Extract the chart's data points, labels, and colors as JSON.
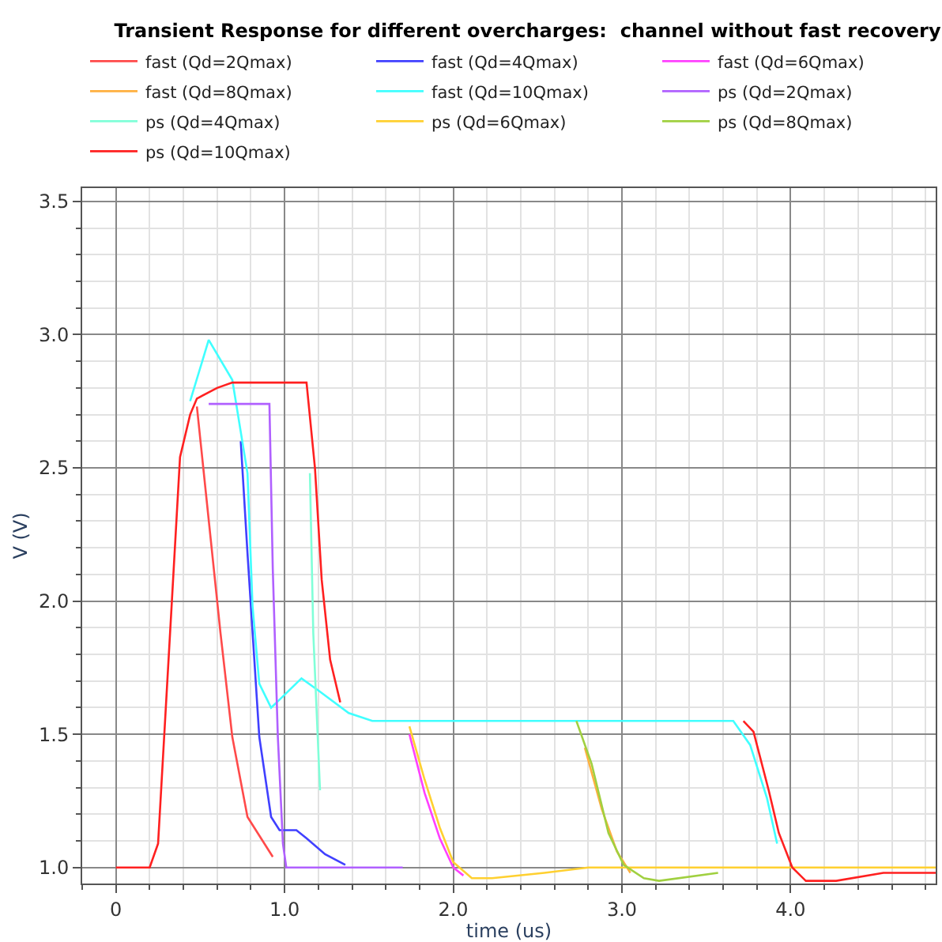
{
  "chart_data": {
    "type": "line",
    "title": "Transient Response for different overcharges:  channel without fast recovery",
    "xlabel": "time (us)",
    "ylabel": "V (V)",
    "xlim": [
      -0.2,
      4.86
    ],
    "ylim": [
      0.94,
      3.55
    ],
    "xticks": [
      0,
      {
        "value": 1,
        "label": "1.0"
      },
      {
        "value": 2,
        "label": "2.0"
      },
      {
        "value": 3,
        "label": "3.0"
      },
      {
        "value": 4,
        "label": "4.0"
      }
    ],
    "yticks": [
      {
        "value": 1,
        "label": "1.0"
      },
      1.5,
      {
        "value": 2,
        "label": "2.0"
      },
      2.5,
      {
        "value": 3,
        "label": "3.0"
      },
      3.5
    ],
    "grid": true,
    "legend": "top",
    "marker": "none",
    "line_style": "solid",
    "series": [
      {
        "name": "fast (Qd=2Qmax)",
        "color": "#ff4a4a",
        "x": [
          0.48,
          0.62,
          0.69,
          0.78,
          0.93
        ],
        "values": [
          2.73,
          1.88,
          1.49,
          1.19,
          1.04
        ]
      },
      {
        "name": "fast (Qd=4Qmax)",
        "color": "#4040ff",
        "x": [
          0.74,
          0.78,
          0.85,
          0.92,
          0.97,
          1.07,
          1.13,
          1.24,
          1.36
        ],
        "values": [
          2.6,
          2.18,
          1.49,
          1.19,
          1.14,
          1.14,
          1.11,
          1.05,
          1.01
        ]
      },
      {
        "name": "fast (Qd=6Qmax)",
        "color": "#ff40ff",
        "x": [
          1.74,
          1.83,
          1.92,
          2.0,
          2.06
        ],
        "values": [
          1.5,
          1.28,
          1.11,
          1.0,
          0.97
        ]
      },
      {
        "name": "fast (Qd=8Qmax)",
        "color": "#ffb040",
        "x": [
          2.78,
          2.88,
          2.97,
          3.05
        ],
        "values": [
          1.45,
          1.22,
          1.06,
          0.98
        ]
      },
      {
        "name": "fast (Qd=10Qmax)",
        "color": "#40ffff",
        "x": [
          0.44,
          0.55,
          0.69,
          0.78,
          0.81,
          0.85,
          0.92,
          0.97,
          1.1,
          1.21,
          1.38,
          1.52,
          3.66,
          3.76,
          3.86,
          3.92
        ],
        "values": [
          2.75,
          2.98,
          2.83,
          2.48,
          1.98,
          1.69,
          1.6,
          1.63,
          1.71,
          1.66,
          1.58,
          1.55,
          1.55,
          1.46,
          1.26,
          1.09
        ]
      },
      {
        "name": "ps (Qd=2Qmax)",
        "color": "#b060ff",
        "x": [
          0.55,
          0.91,
          0.93,
          0.96,
          0.99,
          1.01,
          1.7
        ],
        "values": [
          2.74,
          2.74,
          2.12,
          1.49,
          1.09,
          1.0,
          1.0
        ]
      },
      {
        "name": "ps (Qd=4Qmax)",
        "color": "#80ffd8",
        "x": [
          1.15,
          1.17,
          1.21
        ],
        "values": [
          2.48,
          1.88,
          1.29
        ]
      },
      {
        "name": "ps (Qd=6Qmax)",
        "color": "#ffd030",
        "x": [
          1.74,
          1.83,
          1.92,
          2.0,
          2.11,
          2.23,
          2.54,
          2.8,
          4.86
        ],
        "values": [
          1.53,
          1.33,
          1.15,
          1.02,
          0.96,
          0.96,
          0.98,
          1.0,
          1.0
        ]
      },
      {
        "name": "ps (Qd=8Qmax)",
        "color": "#a0d040",
        "x": [
          2.73,
          2.82,
          2.92,
          3.01,
          3.13,
          3.22,
          3.57
        ],
        "values": [
          1.55,
          1.39,
          1.13,
          1.01,
          0.96,
          0.95,
          0.98
        ]
      },
      {
        "name": "ps (Qd=10Qmax)",
        "color": "#ff2020",
        "x": [
          0,
          0.2,
          0.25,
          0.33,
          0.38,
          0.44,
          0.48,
          0.6,
          0.69,
          1.13,
          1.18,
          1.22,
          1.27,
          1.33,
          2.0,
          3.72,
          3.78,
          3.87,
          3.93,
          4.01,
          4.09,
          4.27,
          4.55,
          4.86
        ],
        "values": [
          1.0,
          1.0,
          1.09,
          1.98,
          2.54,
          2.7,
          2.76,
          2.8,
          2.82,
          2.82,
          2.5,
          2.08,
          1.78,
          1.62,
          null,
          1.55,
          1.51,
          1.29,
          1.13,
          1.0,
          0.95,
          0.95,
          0.98,
          0.98
        ]
      }
    ]
  }
}
